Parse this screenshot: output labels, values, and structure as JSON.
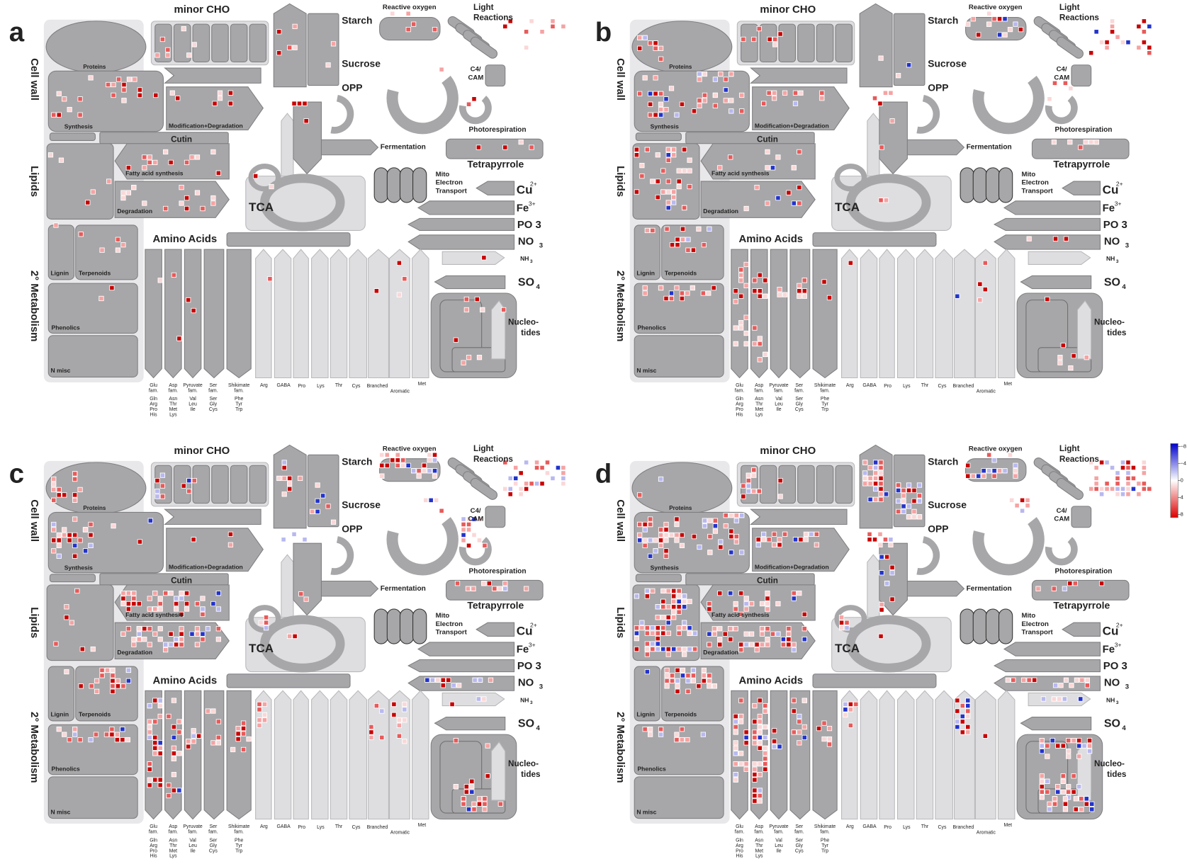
{
  "panels": [
    "a",
    "b",
    "c",
    "d"
  ],
  "labels": {
    "minor_cho": "minor CHO",
    "cell_wall": "Cell wall",
    "lipids": "Lipids",
    "secondary_metabolism": "2° Metabolism",
    "proteins": "Proteins",
    "synthesis": "Synthesis",
    "modification_degradation": "Modification+Degradation",
    "cutin": "Cutin",
    "fatty_acid_synthesis": "Fatty acid synthesis",
    "degradation": "Degradation",
    "lignin": "Lignin",
    "terpenoids": "Terpenoids",
    "phenolics": "Phenolics",
    "n_misc": "N misc",
    "starch": "Starch",
    "sucrose": "Sucrose",
    "opp": "OPP",
    "fermentation": "Fermentation",
    "tca": "TCA",
    "reactive_oxygen": "Reactive oxygen",
    "light": "Light",
    "reactions": "Reactions",
    "c4": "C4/",
    "cam": "CAM",
    "photorespiration": "Photorespiration",
    "tetrapyrrole": "Tetrapyrrole",
    "mito": "Mito",
    "electron": "Electron",
    "transport": "Transport",
    "cu": "Cu",
    "cu_charge": "2+",
    "fe": "Fe",
    "fe_charge": "3+",
    "po": "PO 3",
    "no": "NO",
    "no_sub": "3",
    "nh": "NH",
    "nh_sub": "3",
    "so": "SO",
    "so_sub": "4",
    "nucleo": "Nucleo-",
    "tides": "tides",
    "amino_acids": "Amino Acids"
  },
  "aa_families": [
    [
      "Glu",
      "fam.",
      "Gln",
      "Arg",
      "Pro",
      "His"
    ],
    [
      "Asp",
      "fam.",
      "Asn",
      "Thr",
      "Met",
      "Lys"
    ],
    [
      "Pyruvate",
      "fam.",
      "Val",
      "Leu",
      "Ile"
    ],
    [
      "Ser",
      "fam.",
      "Ser",
      "Gly",
      "Cys"
    ],
    [
      "Shikimate",
      "fam.",
      "Phe",
      "Tyr",
      "Trp"
    ]
  ],
  "aa_single": [
    "Arg",
    "GABA",
    "Pro",
    "Lys",
    "Thr",
    "Cys",
    "Branched",
    "Aromatic",
    "Met"
  ],
  "colorbar_ticks": [
    {
      "value": -8,
      "label": "−8"
    },
    {
      "value": -4,
      "label": "−4"
    },
    0,
    4,
    8
  ]
}
